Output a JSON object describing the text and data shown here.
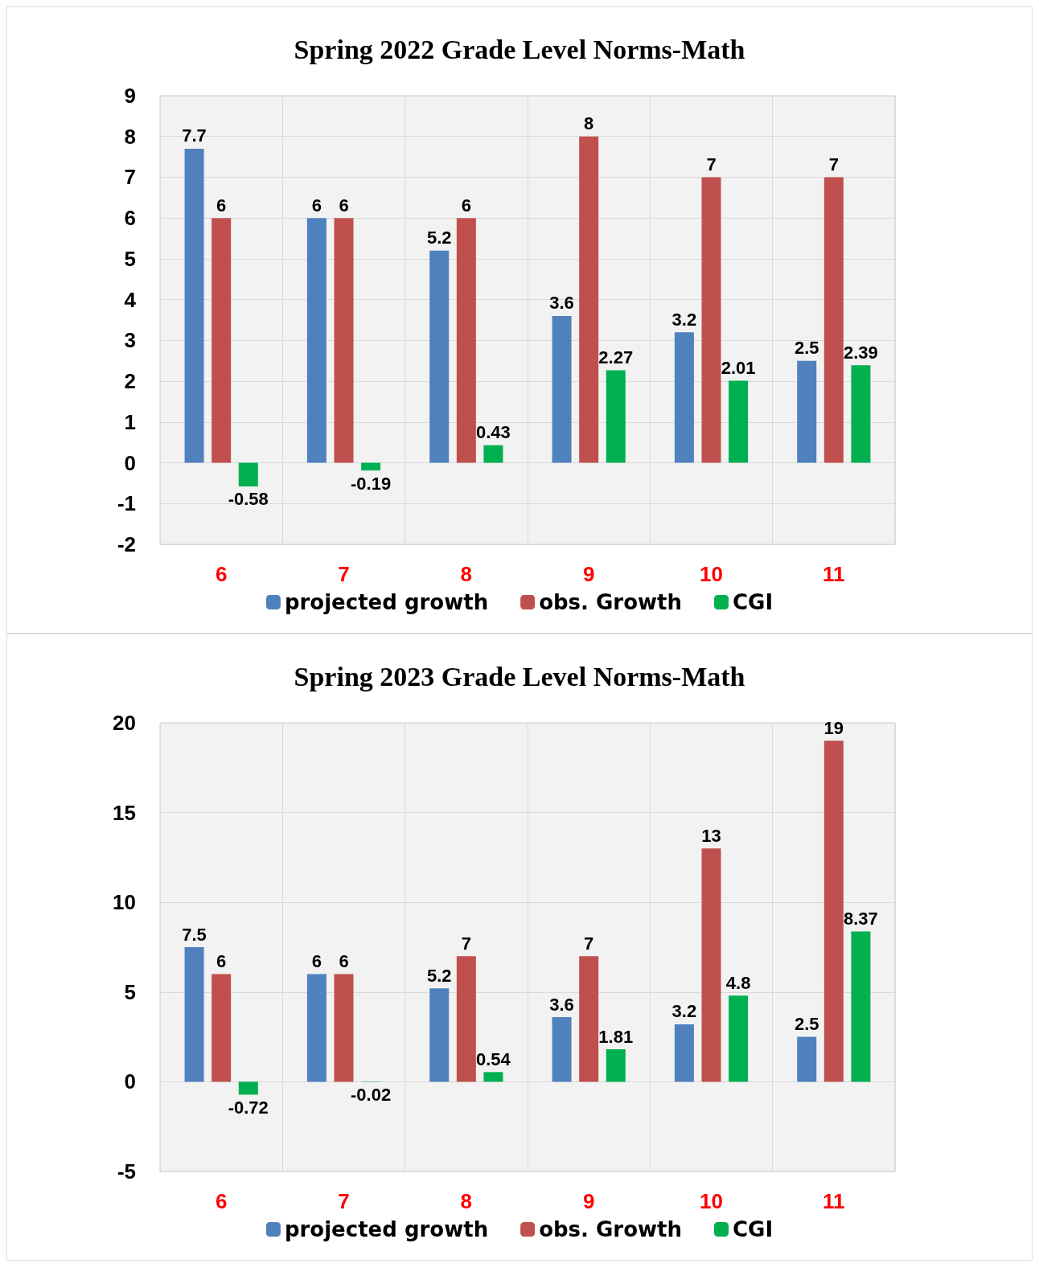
{
  "chart_data": [
    {
      "type": "bar",
      "title": "Spring 2022 Grade Level Norms-Math",
      "categories": [
        "6",
        "7",
        "8",
        "9",
        "10",
        "11"
      ],
      "series": [
        {
          "name": "projected growth",
          "color": "#4f81bd",
          "values": [
            7.7,
            6,
            5.2,
            3.6,
            3.2,
            2.5
          ]
        },
        {
          "name": "obs. Growth",
          "color": "#c0504d",
          "values": [
            6,
            6,
            6,
            8,
            7,
            7
          ]
        },
        {
          "name": "CGI",
          "color": "#00b050",
          "values": [
            -0.58,
            -0.19,
            0.43,
            2.27,
            2.01,
            2.39
          ]
        }
      ],
      "ylim": [
        -2,
        9
      ],
      "yticks": [
        -2,
        -1,
        0,
        1,
        2,
        3,
        4,
        5,
        6,
        7,
        8,
        9
      ],
      "grid": true,
      "legend": "bottom",
      "data_labels": true
    },
    {
      "type": "bar",
      "title": "Spring 2023 Grade Level Norms-Math",
      "categories": [
        "6",
        "7",
        "8",
        "9",
        "10",
        "11"
      ],
      "series": [
        {
          "name": "projected growth",
          "color": "#4f81bd",
          "values": [
            7.5,
            6,
            5.2,
            3.6,
            3.2,
            2.5
          ]
        },
        {
          "name": "obs. Growth",
          "color": "#c0504d",
          "values": [
            6,
            6,
            7,
            7,
            13,
            19
          ]
        },
        {
          "name": "CGI",
          "color": "#00b050",
          "values": [
            -0.72,
            -0.02,
            0.54,
            1.81,
            4.8,
            8.37
          ]
        }
      ],
      "ylim": [
        -5,
        20
      ],
      "yticks": [
        -5,
        0,
        5,
        10,
        15,
        20
      ],
      "grid": true,
      "legend": "bottom",
      "data_labels": true
    }
  ]
}
